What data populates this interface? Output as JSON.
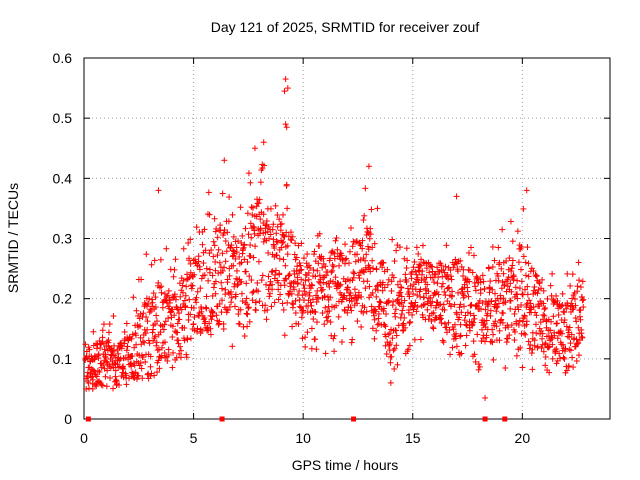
{
  "chart_data": {
    "type": "scatter",
    "title": "Day 121 of 2025, SRMTID for receiver zouf",
    "xlabel": "GPS time / hours",
    "ylabel": "SRMTID / TECUs",
    "xlim": [
      0,
      24
    ],
    "ylim": [
      0,
      0.6
    ],
    "xticks": [
      0,
      5,
      10,
      15,
      20
    ],
    "xtick_labels": [
      "0",
      "5",
      "10",
      "15",
      "20"
    ],
    "yticks": [
      0,
      0.1,
      0.2,
      0.3,
      0.4,
      0.5,
      0.6
    ],
    "ytick_labels": [
      "0",
      "0.1",
      "0.2",
      "0.3",
      "0.4",
      "0.5",
      "0.6"
    ],
    "grid": true,
    "marker": "+",
    "color": "#ff0000",
    "zero_markers_x": [
      0.2,
      6.3,
      12.3,
      18.3,
      19.2
    ],
    "envelope": [
      {
        "t": 0.0,
        "lo": 0.05,
        "mid": 0.09,
        "hi": 0.14
      },
      {
        "t": 1.0,
        "lo": 0.04,
        "mid": 0.09,
        "hi": 0.18
      },
      {
        "t": 2.0,
        "lo": 0.05,
        "mid": 0.1,
        "hi": 0.17
      },
      {
        "t": 3.0,
        "lo": 0.06,
        "mid": 0.14,
        "hi": 0.3
      },
      {
        "t": 4.0,
        "lo": 0.08,
        "mid": 0.15,
        "hi": 0.28
      },
      {
        "t": 5.0,
        "lo": 0.1,
        "mid": 0.2,
        "hi": 0.32
      },
      {
        "t": 6.0,
        "lo": 0.12,
        "mid": 0.24,
        "hi": 0.42
      },
      {
        "t": 7.0,
        "lo": 0.12,
        "mid": 0.25,
        "hi": 0.38
      },
      {
        "t": 8.0,
        "lo": 0.12,
        "mid": 0.27,
        "hi": 0.44
      },
      {
        "t": 9.0,
        "lo": 0.14,
        "mid": 0.26,
        "hi": 0.42
      },
      {
        "t": 10.0,
        "lo": 0.12,
        "mid": 0.22,
        "hi": 0.3
      },
      {
        "t": 11.0,
        "lo": 0.1,
        "mid": 0.22,
        "hi": 0.32
      },
      {
        "t": 12.0,
        "lo": 0.12,
        "mid": 0.22,
        "hi": 0.3
      },
      {
        "t": 13.0,
        "lo": 0.15,
        "mid": 0.25,
        "hi": 0.4
      },
      {
        "t": 14.0,
        "lo": 0.07,
        "mid": 0.17,
        "hi": 0.3
      },
      {
        "t": 15.0,
        "lo": 0.12,
        "mid": 0.22,
        "hi": 0.3
      },
      {
        "t": 16.0,
        "lo": 0.12,
        "mid": 0.21,
        "hi": 0.28
      },
      {
        "t": 17.0,
        "lo": 0.1,
        "mid": 0.2,
        "hi": 0.34
      },
      {
        "t": 18.0,
        "lo": 0.08,
        "mid": 0.18,
        "hi": 0.27
      },
      {
        "t": 19.0,
        "lo": 0.08,
        "mid": 0.2,
        "hi": 0.33
      },
      {
        "t": 20.0,
        "lo": 0.07,
        "mid": 0.2,
        "hi": 0.36
      },
      {
        "t": 21.0,
        "lo": 0.07,
        "mid": 0.16,
        "hi": 0.26
      },
      {
        "t": 22.0,
        "lo": 0.05,
        "mid": 0.13,
        "hi": 0.24
      },
      {
        "t": 22.8,
        "lo": 0.12,
        "mid": 0.2,
        "hi": 0.28
      }
    ],
    "highlights": [
      {
        "x": 9.2,
        "y": 0.565
      },
      {
        "x": 9.3,
        "y": 0.55
      },
      {
        "x": 9.15,
        "y": 0.545
      },
      {
        "x": 9.2,
        "y": 0.49
      },
      {
        "x": 9.25,
        "y": 0.485
      },
      {
        "x": 8.2,
        "y": 0.46
      },
      {
        "x": 7.8,
        "y": 0.45
      },
      {
        "x": 13.0,
        "y": 0.42
      },
      {
        "x": 6.4,
        "y": 0.43
      },
      {
        "x": 3.4,
        "y": 0.38
      },
      {
        "x": 17.0,
        "y": 0.37
      },
      {
        "x": 20.2,
        "y": 0.38
      },
      {
        "x": 18.3,
        "y": 0.035
      },
      {
        "x": 0.4,
        "y": 0.05
      },
      {
        "x": 14.0,
        "y": 0.06
      }
    ]
  }
}
